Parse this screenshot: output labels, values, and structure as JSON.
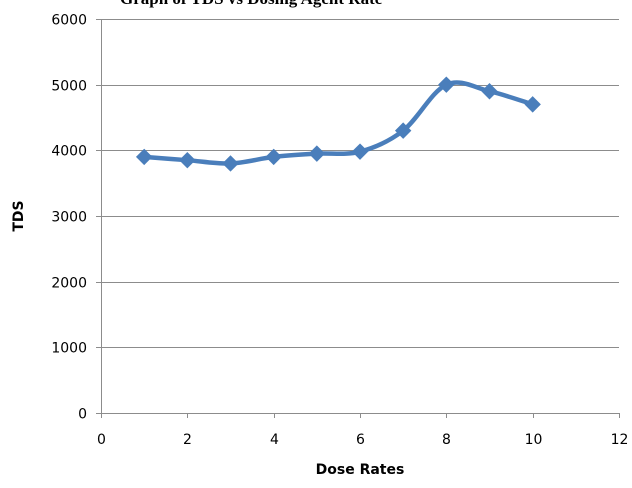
{
  "chart_data": {
    "type": "line",
    "title": "",
    "partial_title_text": "Graph of TDS vs Dosing Agent Rate",
    "xlabel": "Dose Rates",
    "ylabel": "TDS",
    "xlim": [
      0,
      12
    ],
    "ylim": [
      0,
      6000
    ],
    "x_ticks": [
      0,
      2,
      4,
      6,
      8,
      10,
      12
    ],
    "y_ticks": [
      0,
      1000,
      2000,
      3000,
      4000,
      5000,
      6000
    ],
    "grid": "horizontal",
    "legend": "none",
    "series": [
      {
        "x": [
          1,
          2,
          3,
          4,
          5,
          6,
          7,
          8,
          9,
          10
        ],
        "values": [
          3900,
          3850,
          3800,
          3900,
          3950,
          3980,
          4300,
          5000,
          4900,
          4700
        ],
        "color": "#4a7ebb",
        "marker": "diamond"
      }
    ]
  }
}
